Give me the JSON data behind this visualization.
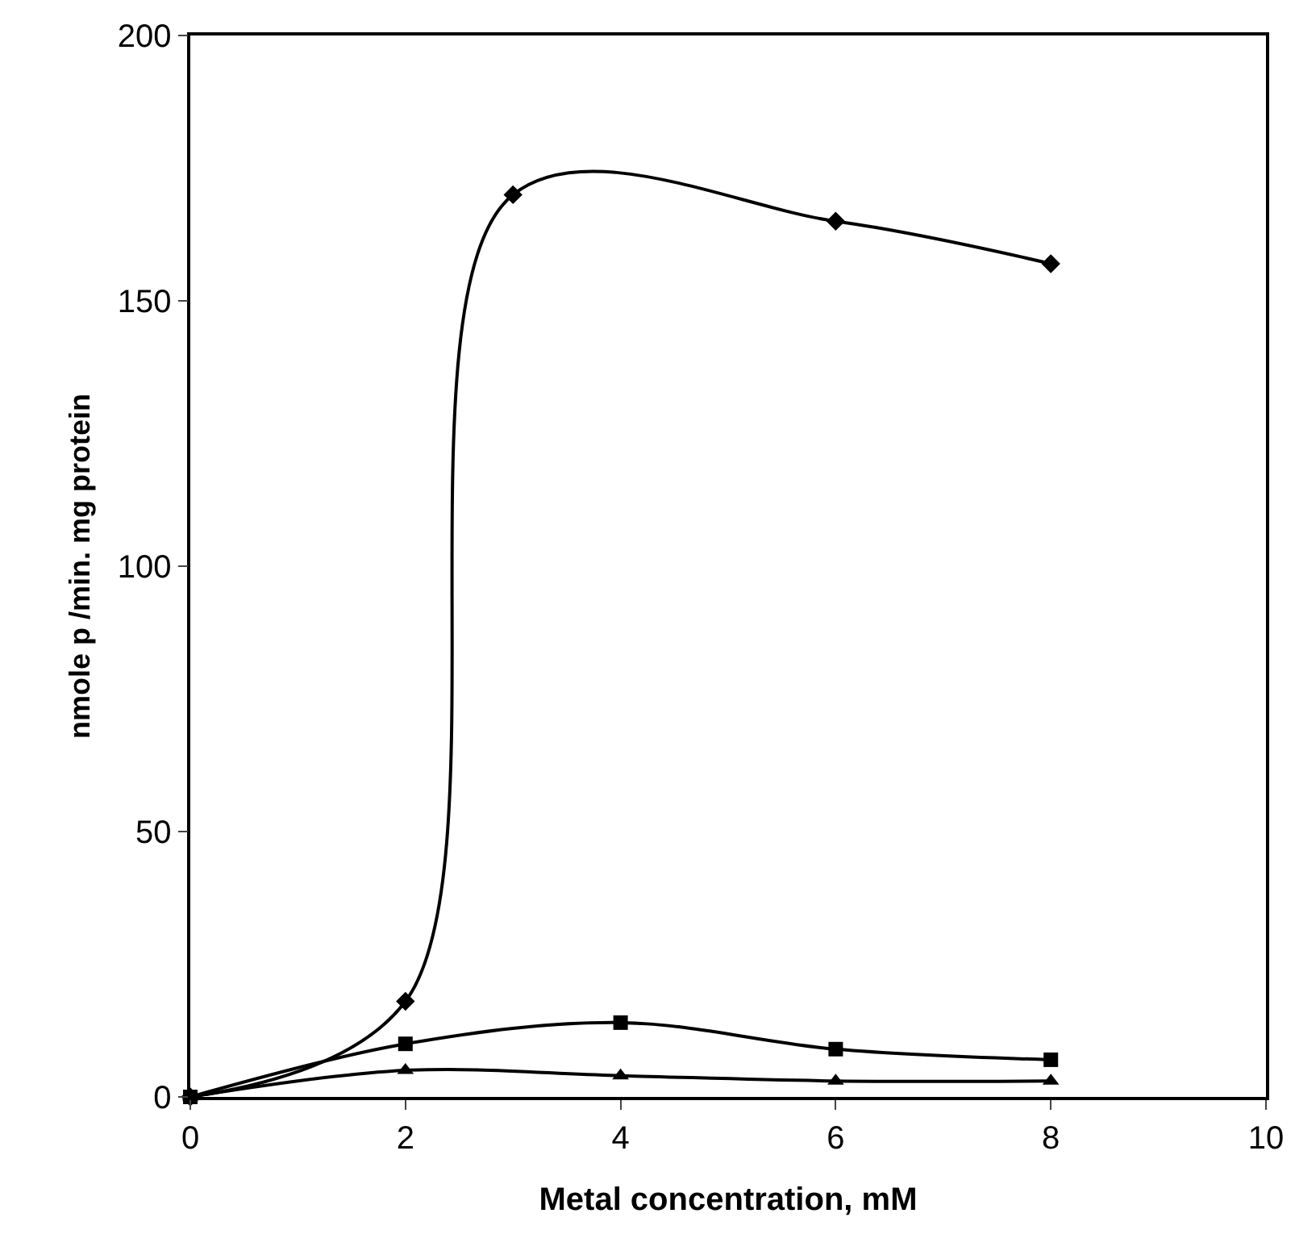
{
  "chart_data": {
    "type": "line",
    "xlabel": "Metal concentration, mM",
    "ylabel": "nmole p /min. mg protein",
    "series": [
      {
        "color": "#000000",
        "marker": "diamond",
        "x": [
          0,
          2,
          3,
          6,
          8
        ],
        "values": [
          0,
          18,
          170,
          165,
          157
        ]
      },
      {
        "color": "#000000",
        "marker": "square",
        "x": [
          0,
          2,
          4,
          6,
          8
        ],
        "values": [
          0,
          10,
          14,
          9,
          7
        ]
      },
      {
        "color": "#000000",
        "marker": "triangle",
        "x": [
          0,
          2,
          4,
          6,
          8
        ],
        "values": [
          0,
          5,
          4,
          3,
          3
        ]
      }
    ],
    "xlim": [
      0,
      10
    ],
    "xticks": [
      0,
      2,
      4,
      6,
      8,
      10
    ],
    "ylim": [
      0,
      200
    ],
    "yticks": [
      0,
      50,
      100,
      150,
      200
    ],
    "grid": false,
    "line_style": "solid"
  }
}
